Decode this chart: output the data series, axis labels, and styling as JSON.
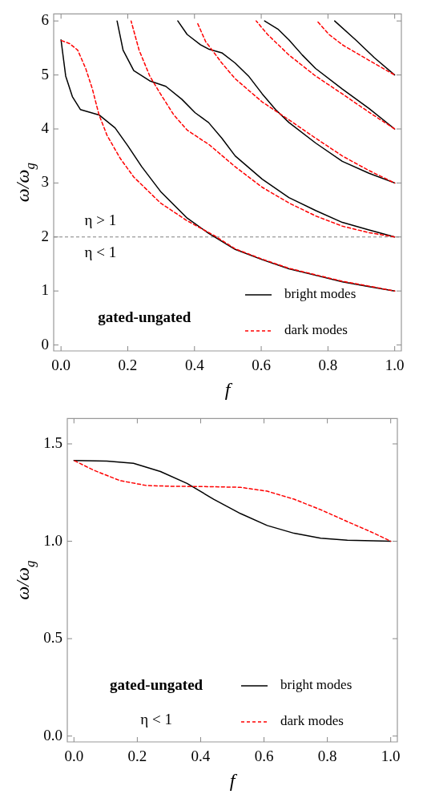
{
  "chart_data": [
    {
      "type": "line",
      "xlabel": "f",
      "ylabel": "ω/ω$_{g}$",
      "legend": "bottom right",
      "marker": "none",
      "xlim": [
        -0.022,
        1.02
      ],
      "ylim": [
        -0.11,
        6.13
      ],
      "xticks": [
        {
          "value": 0,
          "label": "0.0"
        },
        {
          "value": 0.2,
          "label": "0.2"
        },
        {
          "value": 0.4,
          "label": "0.4"
        },
        {
          "value": 0.6,
          "label": "0.6"
        },
        {
          "value": 0.8,
          "label": "0.8"
        },
        {
          "value": 1,
          "label": "1.0"
        }
      ],
      "yticks": [
        0,
        1,
        2,
        3,
        4,
        5,
        6
      ],
      "ref_lines": [
        {
          "axis": "y",
          "value": 2,
          "color": "#808080",
          "line_style": "dashed"
        }
      ],
      "annotations": [
        "η > 1",
        "η < 1",
        "gated-ungated"
      ],
      "series": [
        {
          "name": "bright modes",
          "color": "#000000",
          "line_style": "solid",
          "x": [
            0,
            0.014,
            0.034,
            0.058,
            0.114,
            0.162,
            0.2,
            0.242,
            0.3,
            0.378,
            0.442,
            0.522,
            0.603,
            0.683,
            0.763,
            0.843,
            0.923,
            1
          ],
          "values": [
            5.65,
            4.98,
            4.6,
            4.36,
            4.26,
            4.02,
            3.69,
            3.3,
            2.83,
            2.35,
            2.07,
            1.77,
            1.58,
            1.41,
            1.29,
            1.17,
            1.08,
            1.0
          ]
        },
        {
          "name": "dark modes",
          "color": "#ff0000",
          "line_style": "dashed",
          "x": [
            0,
            0.026,
            0.05,
            0.074,
            0.094,
            0.114,
            0.138,
            0.178,
            0.218,
            0.298,
            0.378,
            0.458,
            0.522,
            0.603,
            0.683,
            0.763,
            0.843,
            0.923,
            1
          ],
          "values": [
            5.64,
            5.58,
            5.46,
            5.12,
            4.74,
            4.26,
            3.88,
            3.45,
            3.11,
            2.63,
            2.3,
            2.03,
            1.78,
            1.59,
            1.42,
            1.3,
            1.18,
            1.09,
            1.0
          ]
        },
        {
          "color": "#000000",
          "line_style": "solid",
          "x": [
            0.168,
            0.186,
            0.218,
            0.266,
            0.314,
            0.362,
            0.402,
            0.442,
            0.482,
            0.522,
            0.603,
            0.683,
            0.763,
            0.843,
            0.923,
            1
          ],
          "values": [
            6.0,
            5.46,
            5.08,
            4.89,
            4.79,
            4.55,
            4.3,
            4.12,
            3.83,
            3.5,
            3.07,
            2.73,
            2.49,
            2.27,
            2.13,
            2.0
          ]
        },
        {
          "color": "#ff0000",
          "line_style": "dashed",
          "x": [
            0.21,
            0.234,
            0.266,
            0.298,
            0.338,
            0.378,
            0.426,
            0.442,
            0.522,
            0.603,
            0.683,
            0.763,
            0.843,
            0.923,
            1
          ],
          "values": [
            6.0,
            5.46,
            4.98,
            4.65,
            4.26,
            3.98,
            3.78,
            3.72,
            3.3,
            2.92,
            2.63,
            2.39,
            2.2,
            2.08,
            2.0
          ]
        },
        {
          "color": "#000000",
          "line_style": "solid",
          "x": [
            0.35,
            0.378,
            0.418,
            0.442,
            0.482,
            0.522,
            0.562,
            0.603,
            0.643,
            0.683,
            0.763,
            0.843,
            0.923,
            1
          ],
          "values": [
            6.0,
            5.75,
            5.56,
            5.48,
            5.41,
            5.22,
            4.98,
            4.65,
            4.36,
            4.12,
            3.74,
            3.4,
            3.18,
            3.0
          ]
        },
        {
          "color": "#ff0000",
          "line_style": "dashed",
          "x": [
            0.409,
            0.434,
            0.442,
            0.482,
            0.522,
            0.603,
            0.683,
            0.763,
            0.843,
            0.923,
            1
          ],
          "values": [
            5.96,
            5.61,
            5.55,
            5.22,
            4.93,
            4.5,
            4.17,
            3.83,
            3.5,
            3.23,
            3.0
          ]
        },
        {
          "color": "#000000",
          "line_style": "solid",
          "x": [
            0.61,
            0.65,
            0.683,
            0.723,
            0.763,
            0.843,
            0.923,
            1
          ],
          "values": [
            6.0,
            5.85,
            5.65,
            5.37,
            5.12,
            4.74,
            4.38,
            4.0
          ]
        },
        {
          "color": "#ff0000",
          "line_style": "dashed",
          "x": [
            0.585,
            0.619,
            0.683,
            0.763,
            0.843,
            0.923,
            1
          ],
          "values": [
            6.0,
            5.75,
            5.37,
            4.98,
            4.65,
            4.31,
            4.0
          ]
        },
        {
          "color": "#000000",
          "line_style": "solid",
          "x": [
            0.82,
            0.883,
            0.939,
            1
          ],
          "values": [
            6.0,
            5.65,
            5.32,
            5.0
          ]
        },
        {
          "color": "#ff0000",
          "line_style": "dashed",
          "x": [
            0.767,
            0.803,
            0.843,
            0.923,
            1
          ],
          "values": [
            6.0,
            5.75,
            5.56,
            5.27,
            5.0
          ]
        }
      ]
    },
    {
      "type": "line",
      "xlabel": "f",
      "ylabel": "ω/ω$_{g}$",
      "legend": "bottom right",
      "marker": "none",
      "xlim": [
        -0.021,
        1.021
      ],
      "ylim": [
        -0.03,
        1.63
      ],
      "xticks": [
        {
          "value": 0,
          "label": "0.0"
        },
        {
          "value": 0.2,
          "label": "0.2"
        },
        {
          "value": 0.4,
          "label": "0.4"
        },
        {
          "value": 0.6,
          "label": "0.6"
        },
        {
          "value": 0.8,
          "label": "0.8"
        },
        {
          "value": 1,
          "label": "1.0"
        }
      ],
      "yticks": [
        {
          "value": 0,
          "label": "0.0"
        },
        0.5,
        {
          "value": 1,
          "label": "1.0"
        },
        1.5
      ],
      "annotations": [
        "gated-ungated",
        "η < 1"
      ],
      "series": [
        {
          "name": "bright modes",
          "color": "#000000",
          "line_style": "solid",
          "x": [
            0,
            0.104,
            0.188,
            0.273,
            0.357,
            0.441,
            0.526,
            0.61,
            0.695,
            0.779,
            0.863,
            1
          ],
          "values": [
            1.415,
            1.412,
            1.4,
            1.358,
            1.297,
            1.216,
            1.142,
            1.081,
            1.041,
            1.016,
            1.005,
            1.0
          ]
        },
        {
          "name": "dark modes",
          "color": "#ff0000",
          "line_style": "dashed",
          "x": [
            0,
            0.062,
            0.146,
            0.23,
            0.315,
            0.4,
            0.526,
            0.61,
            0.695,
            0.779,
            0.863,
            0.948,
            1
          ],
          "values": [
            1.415,
            1.365,
            1.311,
            1.286,
            1.282,
            1.281,
            1.277,
            1.257,
            1.216,
            1.162,
            1.101,
            1.041,
            1.0
          ]
        }
      ]
    }
  ]
}
